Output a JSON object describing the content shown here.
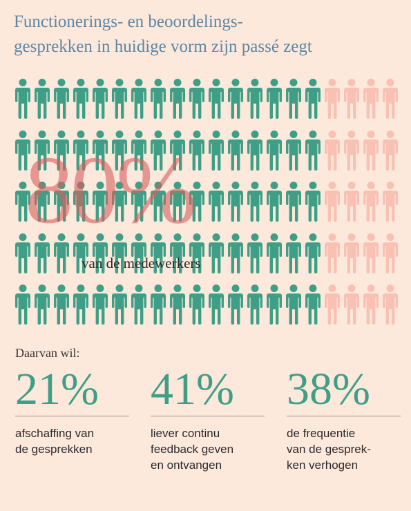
{
  "title": {
    "line1": "Functionerings- en beoordelings-",
    "line2": "gesprekken in huidige vorm zijn passé zegt"
  },
  "pictogram": {
    "icon": "person-icon",
    "rows": 5,
    "columns": 20,
    "highlighted_columns": 16,
    "highlighted_share": 0.8,
    "colors": {
      "highlighted": "#3f9f86",
      "other": "#f9c1b3"
    }
  },
  "headline": {
    "percent": "80%",
    "subject": "van de medewerkers"
  },
  "intro": "Daarvan wil:",
  "stats": [
    {
      "percent": "21%",
      "description": "afschaffing van\nde gesprekken"
    },
    {
      "percent": "41%",
      "description": "liever continu\nfeedback geven\nen ontvangen"
    },
    {
      "percent": "38%",
      "description": "de frequentie\nvan de gesprek-\nken verhogen"
    }
  ],
  "colors": {
    "background": "#fde8dc",
    "title": "#5b87a3",
    "accent": "#3f9f86",
    "headline_number": "#d75f5f"
  }
}
